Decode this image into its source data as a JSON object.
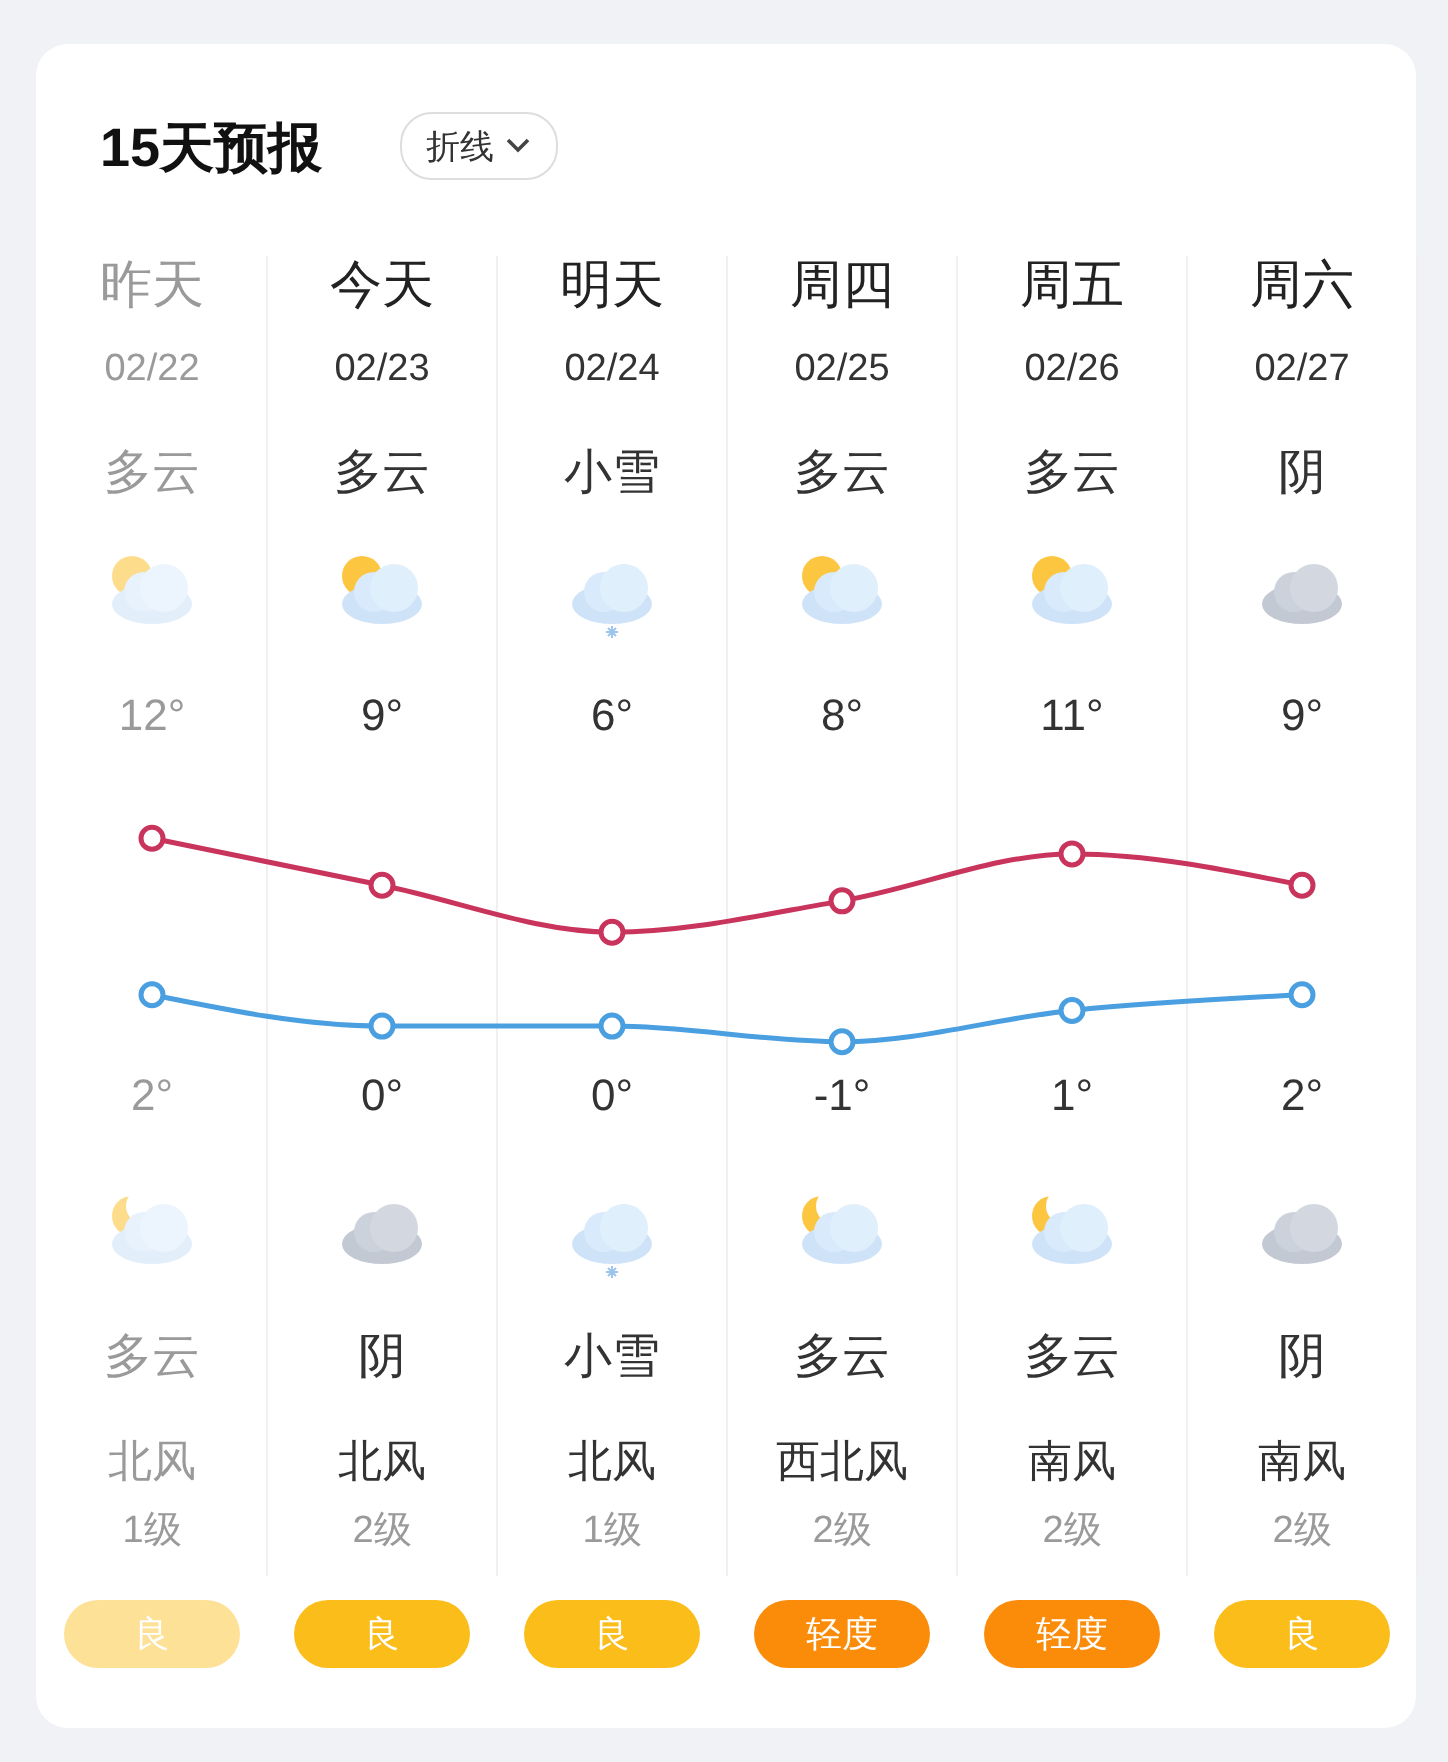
{
  "chart_data": {
    "type": "line",
    "title": "15天预报",
    "categories": [
      "昨天",
      "今天",
      "明天",
      "周四",
      "周五",
      "周六"
    ],
    "series": [
      {
        "color": "#c9345d",
        "values": [
          12,
          9,
          6,
          8,
          11,
          9
        ],
        "value_labels": [
          "12°",
          "9°",
          "6°",
          "8°",
          "11°",
          "9°"
        ]
      },
      {
        "color": "#4a9fe0",
        "values": [
          2,
          0,
          0,
          -1,
          1,
          2
        ],
        "value_labels": [
          "2°",
          "0°",
          "0°",
          "-1°",
          "1°",
          "2°"
        ]
      }
    ],
    "tick_labels": "x",
    "marker": "circle",
    "annotations": [
      "折线",
      "02/22",
      "02/23",
      "02/24",
      "02/25",
      "02/26",
      "02/27",
      "多云",
      "多云",
      "小雪",
      "多云",
      "多云",
      "阴",
      "多云",
      "阴",
      "小雪",
      "多云",
      "多云",
      "阴",
      "北风",
      "北风",
      "北风",
      "西北风",
      "南风",
      "南风",
      "1级",
      "2级",
      "1级",
      "2级",
      "2级",
      "2级",
      "良",
      "良",
      "良",
      "轻度",
      "轻度",
      "良"
    ]
  }
}
